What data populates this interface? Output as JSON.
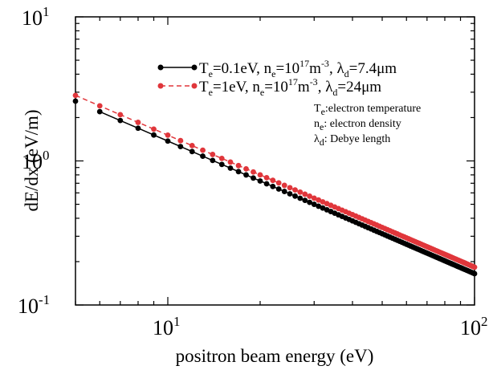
{
  "chart_data": {
    "type": "line",
    "xscale": "log",
    "yscale": "log",
    "xlim": [
      5,
      100
    ],
    "ylim": [
      0.1,
      10
    ],
    "xlabel": "positron beam energy (eV)",
    "ylabel": "dE/dx (eV/m)",
    "x_ticks": [
      {
        "base": "10",
        "exp": "1"
      },
      {
        "base": "10",
        "exp": "2"
      }
    ],
    "y_ticks": [
      {
        "base": "10",
        "exp": "-1"
      },
      {
        "base": "10",
        "exp": "0"
      },
      {
        "base": "10",
        "exp": "1"
      }
    ],
    "grid": false,
    "legend_position": "top-right",
    "series": [
      {
        "label": {
          "T": "T",
          "T_sub": "e",
          "T_val": "=0.1eV, n",
          "n_sub": "e",
          "n_val": "=10",
          "n_exp": "17",
          "unit": "m",
          "unit_exp": "-3",
          "lam": ", λ",
          "lam_sub": "d",
          "lam_val": "=7.4μm"
        },
        "color": "#000000",
        "line_style": "solid",
        "x_start": 5,
        "x_end": 100,
        "x_step": 1,
        "y_at_5": 2.6,
        "y_at_100": 0.165,
        "gap_after_first": true
      },
      {
        "label": {
          "T": "T",
          "T_sub": "e",
          "T_val": "=1eV, n",
          "n_sub": "e",
          "n_val": "=10",
          "n_exp": "17",
          "unit": "m",
          "unit_exp": "-3",
          "lam": ", λ",
          "lam_sub": "d",
          "lam_val": "=24μm"
        },
        "color": "#e0363b",
        "line_style": "dashed",
        "x_start": 5,
        "x_end": 100,
        "x_step": 1,
        "y_at_5": 2.85,
        "y_at_100": 0.183,
        "gap_after_first": false
      }
    ],
    "annotations": [
      {
        "main": "T",
        "sub": "e",
        "rest": ":electron temperature"
      },
      {
        "main": "n",
        "sub": "e",
        "rest": ": electron density"
      },
      {
        "main": "λ",
        "sub": "d",
        "rest": ": Debye length"
      }
    ]
  }
}
